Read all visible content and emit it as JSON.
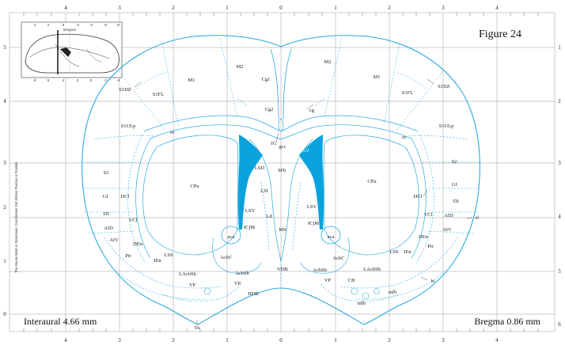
{
  "figure_label": "Figure 24",
  "interaural": "Interaural 4.66 mm",
  "bregma": "Bregma 0.86 mm",
  "credit": "The Mouse Brain in Stereotaxic Coordinates 2nd Edition  Paxinos & Franklin",
  "colors": {
    "outline": "#29a9e0",
    "ventricle": "#0aa3dd",
    "grid": "#9a9a9a",
    "text": "#222222"
  },
  "rulers": {
    "top": [
      "4",
      "3",
      "2",
      "1",
      "0",
      "1",
      "2",
      "3",
      "4"
    ],
    "bottom": [
      "4",
      "3",
      "2",
      "1",
      "0",
      "1",
      "2",
      "3",
      "4"
    ],
    "left": [
      "5",
      "4",
      "3",
      "2",
      "1",
      "0"
    ],
    "right": [
      "1",
      "2",
      "3",
      "4",
      "5",
      "6"
    ]
  },
  "inset": {
    "label": "Bregma",
    "top_ticks": [
      "4",
      "2",
      "0",
      "-2",
      "-4",
      "-6",
      "-8"
    ],
    "bottom_ticks": [
      "8",
      "6",
      "4",
      "2",
      "0",
      "-2",
      "-4"
    ]
  },
  "labels": {
    "M1_l": "M1",
    "M2_l": "M2",
    "Cg1": "Cg1",
    "M2_r": "M2",
    "M1_r": "M1",
    "S1DZ_l": "S1DZ",
    "S1FL_l": "S1FL",
    "Cg2": "Cg2",
    "cg": "cg",
    "S1FL_r": "S1FL",
    "S1DZ_r": "S1DZ",
    "S1ULp_l": "S1ULp",
    "S1ULp_r": "S1ULp",
    "ec_l": "ec",
    "ec_r": "ec",
    "IG": "IG",
    "gcc": "gcc",
    "LV": "LV",
    "S2_l": "S2",
    "S2_r": "S2",
    "CPu_l": "CPu",
    "CPu_r": "CPu",
    "LSD": "LSD",
    "SHi": "SHi",
    "LSI": "LSI",
    "GI_l": "GI",
    "DCl_l": "DCl",
    "DCl_r": "DCl",
    "GI_r": "GI",
    "DI_l": "DI",
    "DI_r": "DI",
    "VCl_l": "VCl",
    "VCl_r": "VCl",
    "LSV_l": "LSV",
    "LSV_r": "LSV",
    "Ld": "Ld",
    "AID_l": "AID",
    "AID_r": "AID",
    "rf": "rf",
    "ICjM_l": "ICjM",
    "ICjM_r": "ICjM",
    "aca_l": "aca",
    "aca_r": "aca",
    "MS": "MS",
    "AIV_l": "AIV",
    "AIV_r": "AIV",
    "DEn_l": "DEn",
    "DEn_r": "DEn",
    "Pir_l": "Pir",
    "Pir_r": "Pir",
    "IEn_l": "IEn",
    "IEn_r": "IEn",
    "LSS_l": "LSS",
    "LSS_r": "LSS",
    "AcbC_l": "AcbC",
    "AcbC_r": "AcbC",
    "LAcbSh_l": "LAcbSh",
    "LAcbSh_r": "LAcbSh",
    "AcbSh_l": "AcbSh",
    "AcbSh_r": "AcbSh",
    "VDB": "VDB",
    "VP_l1": "VP",
    "VP_l2": "VP",
    "VP_r": "VP",
    "CB": "CB",
    "HDB": "HDB",
    "mfb_l": "mfb",
    "mfb_r": "mfb",
    "lo": "lo",
    "Tu": "Tu"
  }
}
